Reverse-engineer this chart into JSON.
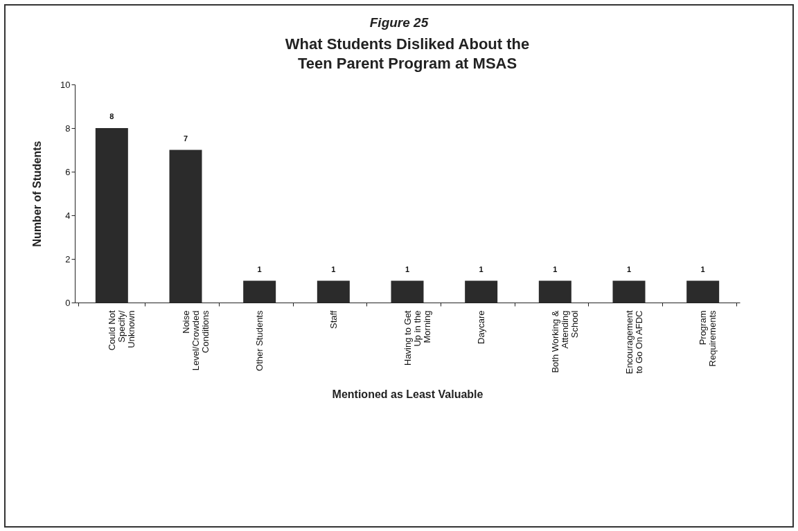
{
  "chart_data": {
    "type": "bar",
    "subtitle": "Figure 25",
    "title": "What Students Disliked About the Teen Parent Program at MSAS",
    "xlabel": "Mentioned as Least Valuable",
    "ylabel": "Number of Students",
    "categories": [
      "Could Not Specify/ Unknown",
      "Noise Level/Crowded Conditions",
      "Other Students",
      "Staff",
      "Having to Get Up in the Morning",
      "Daycare",
      "Both Working & Attending School",
      "Encouragement to Go On AFDC",
      "Program Requirements"
    ],
    "values": [
      8,
      7,
      1,
      1,
      1,
      1,
      1,
      1,
      1
    ],
    "color": "#2b2b2b",
    "ylim": [
      0,
      10
    ],
    "yticks": [
      0,
      2,
      4,
      6,
      8,
      10
    ],
    "grid": false,
    "data_labels": true
  }
}
